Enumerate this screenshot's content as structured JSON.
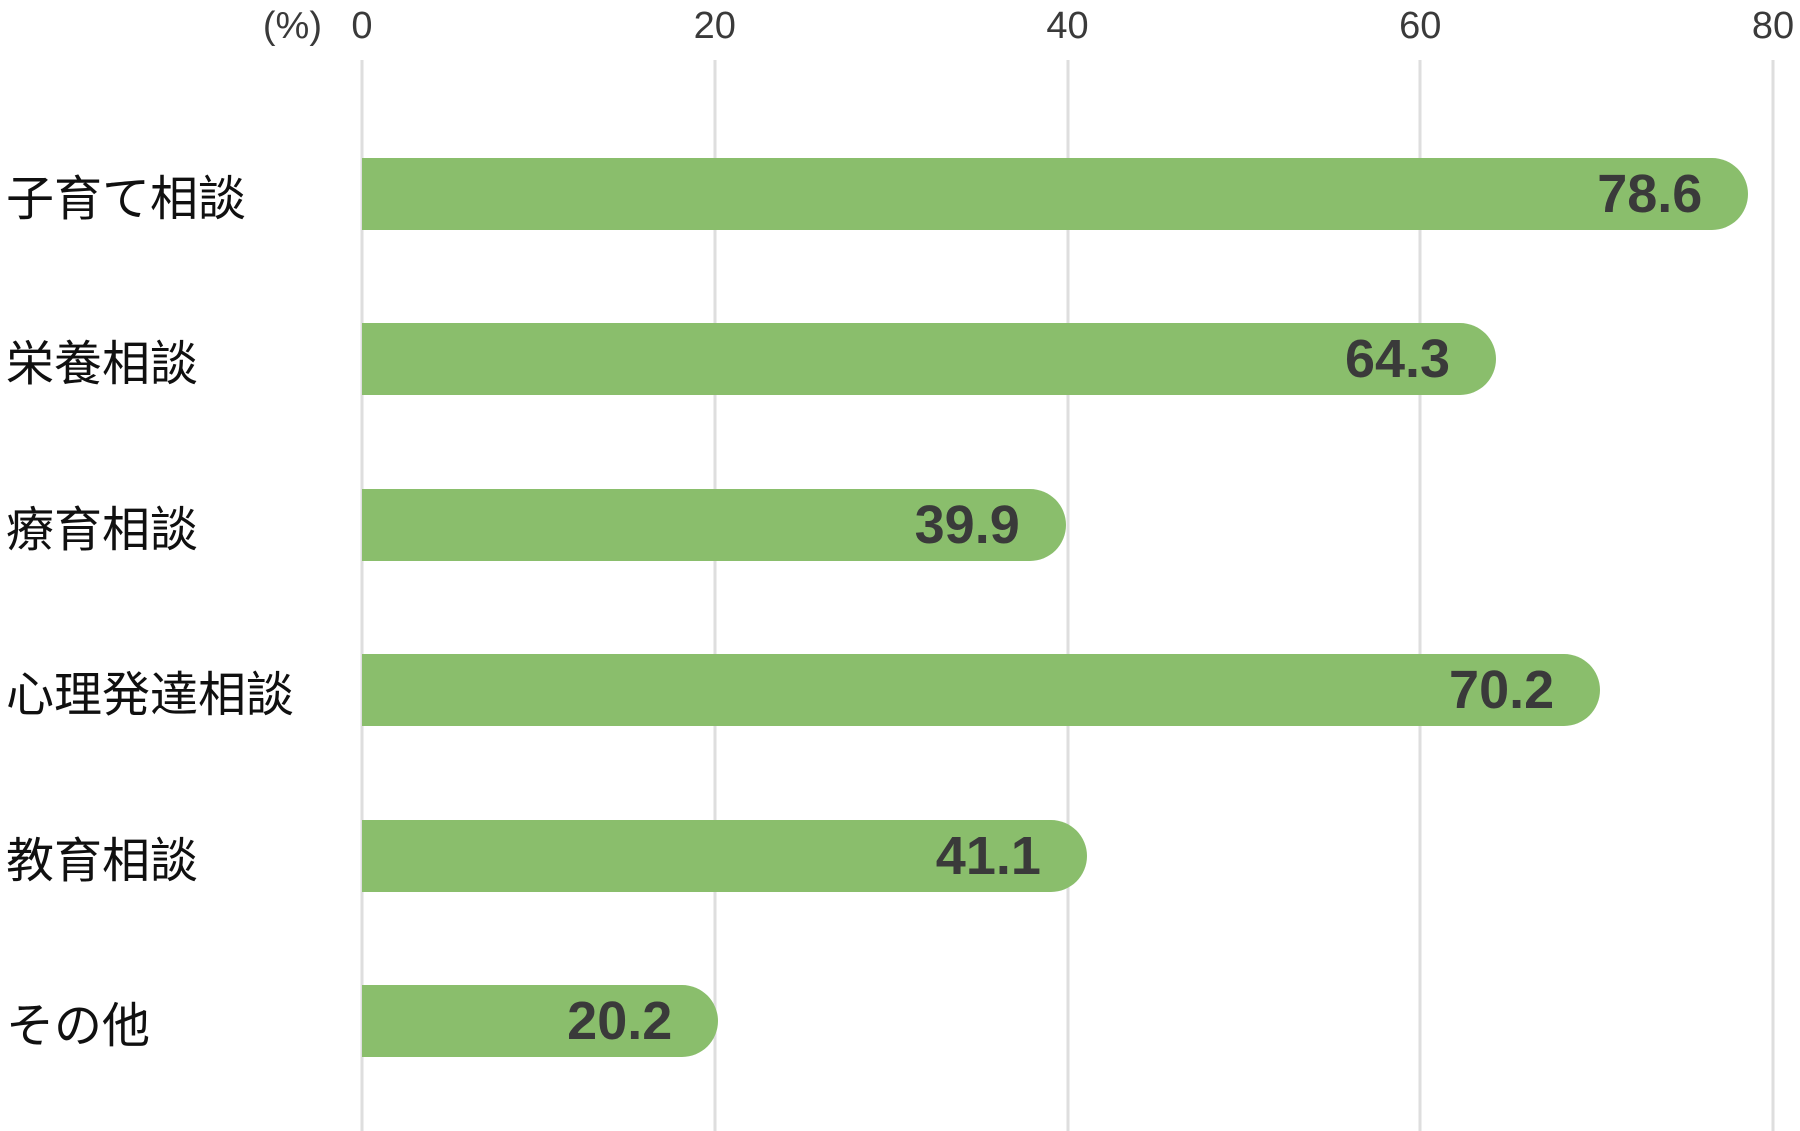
{
  "chart_data": {
    "type": "bar",
    "orientation": "horizontal",
    "title": "",
    "unit_label": "(%)",
    "categories": [
      "子育て相談",
      "栄養相談",
      "療育相談",
      "心理発達相談",
      "教育相談",
      "その他"
    ],
    "values": [
      78.6,
      64.3,
      39.9,
      70.2,
      41.1,
      20.2
    ],
    "value_labels": [
      "78.6",
      "64.3",
      "39.9",
      "70.2",
      "41.1",
      "20.2"
    ],
    "x_ticks": [
      "0",
      "20",
      "40",
      "60",
      "80"
    ],
    "xlim": [
      0,
      80
    ],
    "grid": "vertical-gridlines",
    "legend": "none",
    "value_label_position": "inside-bar-right",
    "colors": {
      "bar": "#8abe6c",
      "value_text": "#3a3a3a",
      "tick_text": "#3a3a3a",
      "category_text": "#101010",
      "gridline": "#dedede",
      "background": "#ffffff"
    }
  }
}
